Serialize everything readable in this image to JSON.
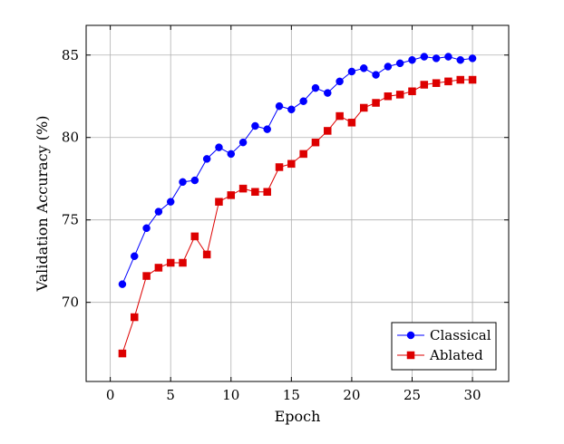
{
  "chart_data": {
    "type": "line",
    "title": "",
    "xlabel": "Epoch",
    "ylabel": "Validation Accuracy (%)",
    "xlim": [
      -2,
      33
    ],
    "ylim": [
      65.2,
      86.8
    ],
    "xticks": [
      0,
      5,
      10,
      15,
      20,
      25,
      30
    ],
    "yticks": [
      70,
      75,
      80,
      85
    ],
    "grid": true,
    "legend_position": "bottom-right",
    "series": [
      {
        "name": "Classical",
        "color": "#0000ff",
        "marker": "circle",
        "x": [
          1,
          2,
          3,
          4,
          5,
          6,
          7,
          8,
          9,
          10,
          11,
          12,
          13,
          14,
          15,
          16,
          17,
          18,
          19,
          20,
          21,
          22,
          23,
          24,
          25,
          26,
          27,
          28,
          29,
          30
        ],
        "values": [
          71.1,
          72.8,
          74.5,
          75.5,
          76.1,
          77.3,
          77.4,
          78.7,
          79.4,
          79.0,
          79.7,
          80.7,
          80.5,
          81.9,
          81.7,
          82.2,
          83.0,
          82.7,
          83.4,
          84.0,
          84.2,
          83.8,
          84.3,
          84.5,
          84.7,
          84.9,
          84.8,
          84.9,
          84.7,
          84.8
        ]
      },
      {
        "name": "Ablated",
        "color": "#dd0000",
        "marker": "square",
        "x": [
          1,
          2,
          3,
          4,
          5,
          6,
          7,
          8,
          9,
          10,
          11,
          12,
          13,
          14,
          15,
          16,
          17,
          18,
          19,
          20,
          21,
          22,
          23,
          24,
          25,
          26,
          27,
          28,
          29,
          30
        ],
        "values": [
          66.9,
          69.1,
          71.6,
          72.1,
          72.4,
          72.4,
          74.0,
          72.9,
          76.1,
          76.5,
          76.9,
          76.7,
          76.7,
          78.2,
          78.4,
          79.0,
          79.7,
          80.4,
          81.3,
          80.9,
          81.8,
          82.1,
          82.5,
          82.6,
          82.8,
          83.2,
          83.3,
          83.4,
          83.5,
          83.5
        ]
      }
    ]
  }
}
